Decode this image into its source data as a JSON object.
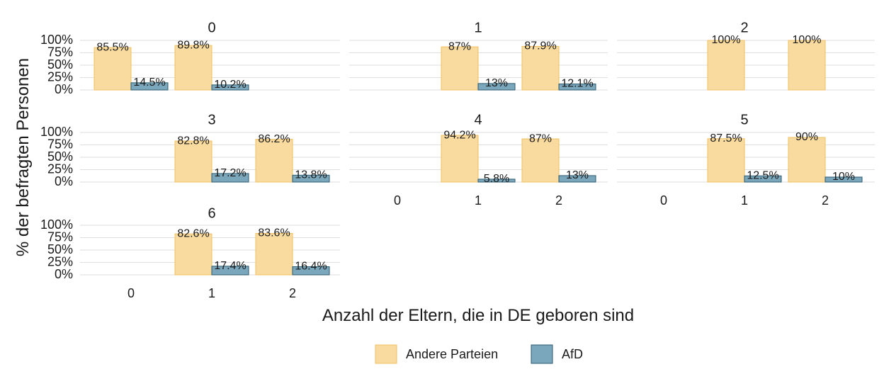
{
  "chart_data": {
    "type": "bar",
    "xlabel": "Anzahl der Eltern, die in DE geboren sind",
    "ylabel": "% der befragten Personen",
    "ylim": [
      0,
      100
    ],
    "y_ticks": [
      "0%",
      "25%",
      "50%",
      "75%",
      "100%"
    ],
    "categories": [
      "0",
      "1",
      "2"
    ],
    "legend_position": "bottom",
    "grid": true,
    "series": [
      {
        "name": "Andere Parteien",
        "color": "#f9dba0",
        "stroke": "#f0c060"
      },
      {
        "name": "AfD",
        "color": "#7ba7bc",
        "stroke": "#2b5a6e"
      }
    ],
    "facets": [
      {
        "title": "0",
        "bars": [
          {
            "x": "0",
            "series": 0,
            "value": 85.5,
            "label": "85.5%"
          },
          {
            "x": "0",
            "series": 1,
            "value": 14.5,
            "label": "14.5%"
          },
          {
            "x": "1",
            "series": 0,
            "value": 89.8,
            "label": "89.8%"
          },
          {
            "x": "1",
            "series": 1,
            "value": 10.2,
            "label": "10.2%"
          }
        ]
      },
      {
        "title": "1",
        "bars": [
          {
            "x": "1",
            "series": 0,
            "value": 87,
            "label": "87%"
          },
          {
            "x": "1",
            "series": 1,
            "value": 13,
            "label": "13%"
          },
          {
            "x": "2",
            "series": 0,
            "value": 87.9,
            "label": "87.9%"
          },
          {
            "x": "2",
            "series": 1,
            "value": 12.1,
            "label": "12.1%"
          }
        ]
      },
      {
        "title": "2",
        "bars": [
          {
            "x": "1",
            "series": 0,
            "value": 100,
            "label": "100%"
          },
          {
            "x": "2",
            "series": 0,
            "value": 100,
            "label": "100%"
          }
        ]
      },
      {
        "title": "3",
        "bars": [
          {
            "x": "1",
            "series": 0,
            "value": 82.8,
            "label": "82.8%"
          },
          {
            "x": "1",
            "series": 1,
            "value": 17.2,
            "label": "17.2%"
          },
          {
            "x": "2",
            "series": 0,
            "value": 86.2,
            "label": "86.2%"
          },
          {
            "x": "2",
            "series": 1,
            "value": 13.8,
            "label": "13.8%"
          }
        ]
      },
      {
        "title": "4",
        "bars": [
          {
            "x": "1",
            "series": 0,
            "value": 94.2,
            "label": "94.2%"
          },
          {
            "x": "1",
            "series": 1,
            "value": 5.8,
            "label": "5.8%"
          },
          {
            "x": "2",
            "series": 0,
            "value": 87,
            "label": "87%"
          },
          {
            "x": "2",
            "series": 1,
            "value": 13,
            "label": "13%"
          }
        ]
      },
      {
        "title": "5",
        "bars": [
          {
            "x": "1",
            "series": 0,
            "value": 87.5,
            "label": "87.5%"
          },
          {
            "x": "1",
            "series": 1,
            "value": 12.5,
            "label": "12.5%"
          },
          {
            "x": "2",
            "series": 0,
            "value": 90,
            "label": "90%"
          },
          {
            "x": "2",
            "series": 1,
            "value": 10,
            "label": "10%"
          }
        ]
      },
      {
        "title": "6",
        "bars": [
          {
            "x": "1",
            "series": 0,
            "value": 82.6,
            "label": "82.6%"
          },
          {
            "x": "1",
            "series": 1,
            "value": 17.4,
            "label": "17.4%"
          },
          {
            "x": "2",
            "series": 0,
            "value": 83.6,
            "label": "83.6%"
          },
          {
            "x": "2",
            "series": 1,
            "value": 16.4,
            "label": "16.4%"
          }
        ]
      }
    ]
  }
}
